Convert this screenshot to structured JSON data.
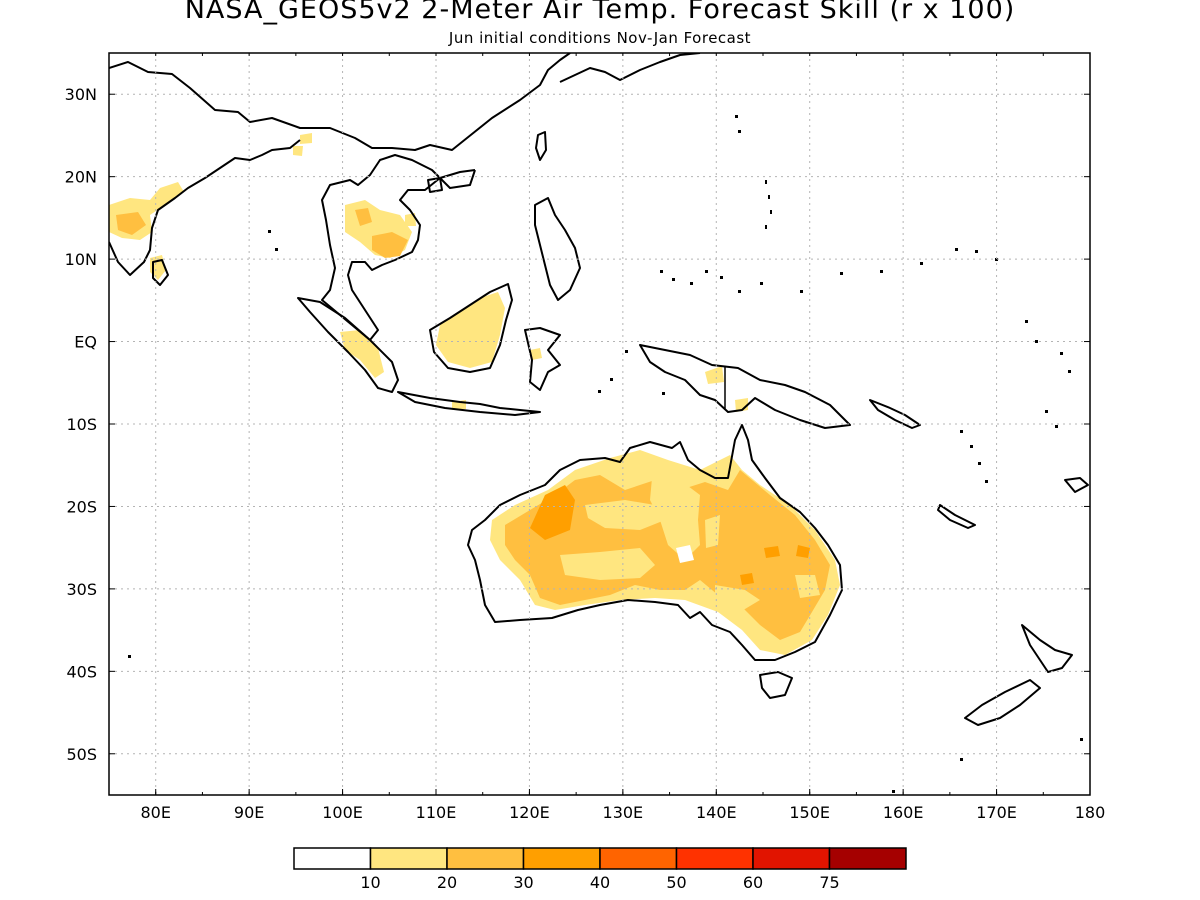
{
  "header": {
    "title": "NASA_GEOS5v2 2-Meter Air Temp. Forecast Skill (r x 100)",
    "subtitle": "Jun initial conditions  Nov-Jan Forecast"
  },
  "map": {
    "lon_range": [
      75,
      180
    ],
    "lat_range": [
      -55,
      35
    ],
    "lon_labels": [
      "80E",
      "90E",
      "100E",
      "110E",
      "120E",
      "130E",
      "140E",
      "150E",
      "160E",
      "170E",
      "180"
    ],
    "lat_labels": [
      "30N",
      "20N",
      "10N",
      "EQ",
      "10S",
      "20S",
      "30S",
      "40S",
      "50S"
    ],
    "grid": true
  },
  "legend": {
    "labels": [
      "10",
      "20",
      "30",
      "40",
      "50",
      "60",
      "75"
    ],
    "colors": [
      "#ffffff",
      "#ffe680",
      "#ffbf40",
      "#ff9f00",
      "#ff6400",
      "#ff3200",
      "#e11400",
      "#a50000"
    ]
  },
  "skill_regions": [
    {
      "name": "australia-interior",
      "level": "20-30"
    },
    {
      "name": "australia-outer",
      "level": "10-20"
    },
    {
      "name": "india-west",
      "level": "10-30"
    },
    {
      "name": "indochina",
      "level": "10-30"
    },
    {
      "name": "borneo",
      "level": "10-20"
    },
    {
      "name": "sumatra",
      "level": "10-20"
    }
  ]
}
